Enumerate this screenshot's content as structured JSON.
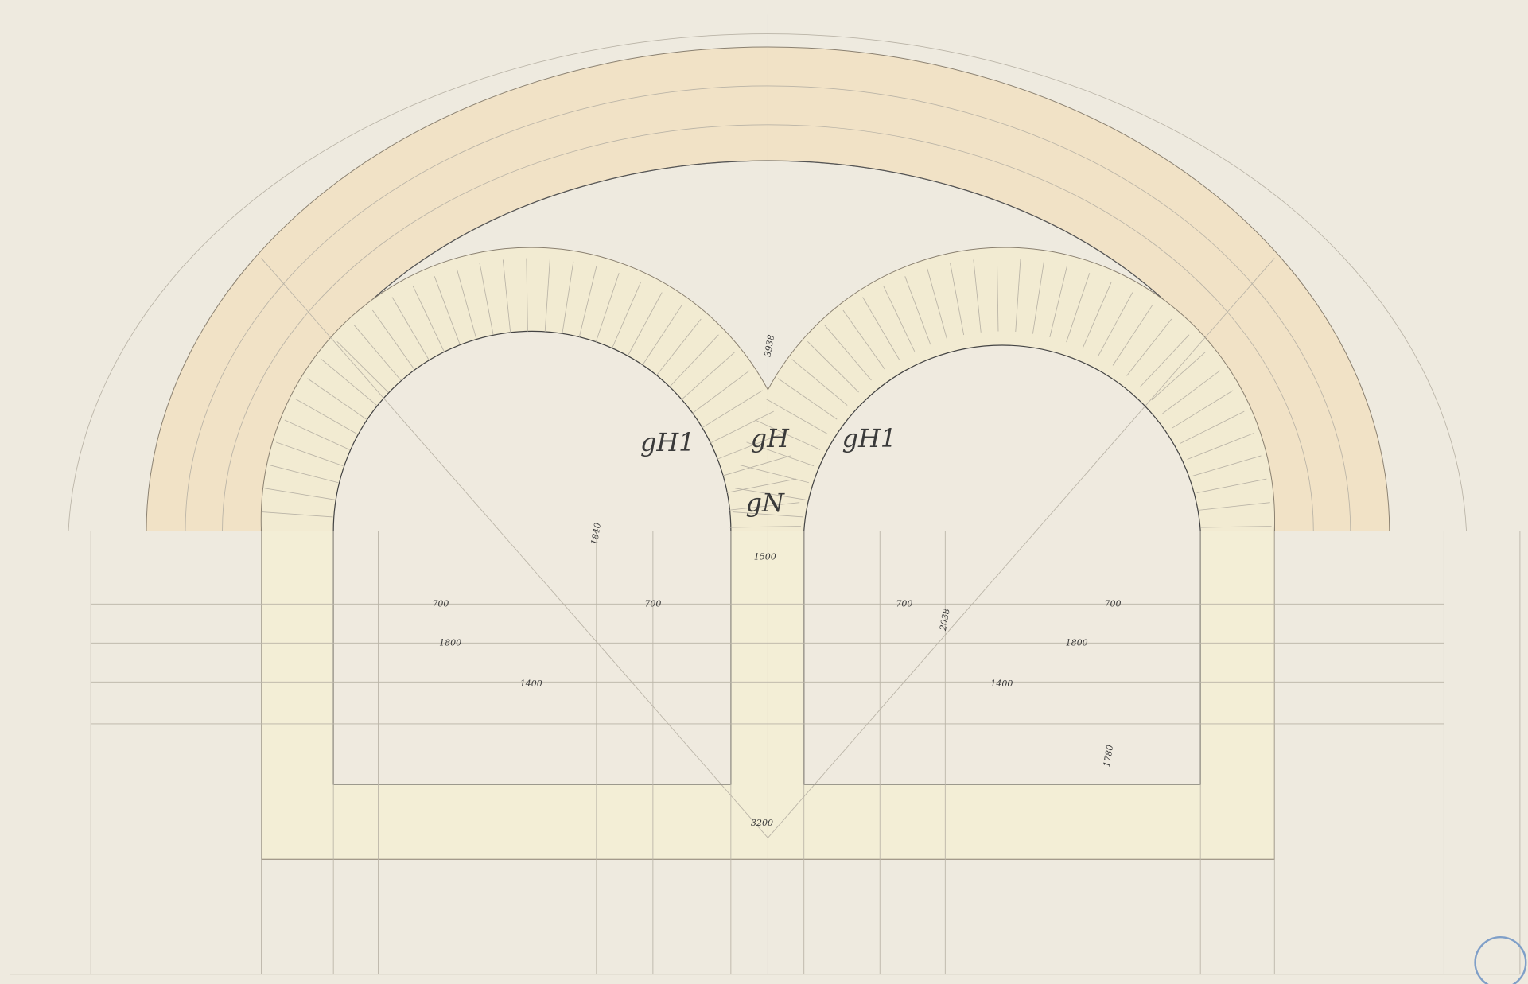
{
  "labels": [
    "gH",
    "gN",
    "gH1",
    "gH1"
  ],
  "dimensions": [
    "3938",
    "1840",
    "1500",
    "700",
    "700",
    "700",
    "700",
    "1800",
    "1800",
    "1400",
    "1400",
    "2038",
    "1780",
    "3200"
  ]
}
